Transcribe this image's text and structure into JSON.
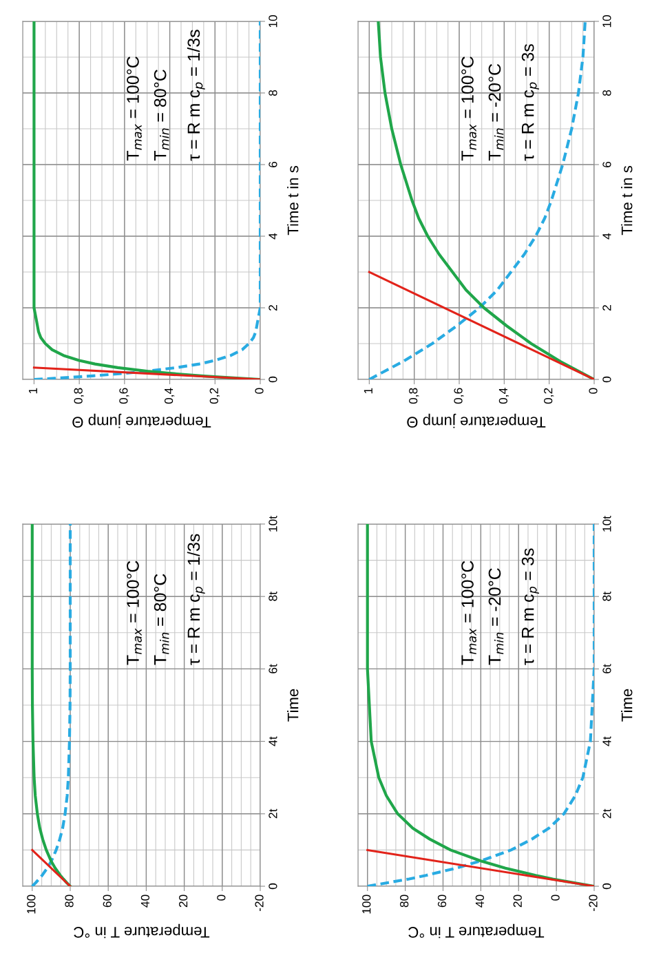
{
  "chart_data": [
    {
      "type": "line",
      "ylabel": "Time t in s",
      "xlabel": "Temperature jump Θ",
      "ylim": [
        0,
        10
      ],
      "yticks": [
        0,
        2,
        4,
        6,
        8,
        10
      ],
      "xlim": [
        1.05,
        0
      ],
      "xticks": [
        0,
        {
          "value": 0.2,
          "label": "0,2"
        },
        {
          "value": 0.4,
          "label": "0,4"
        },
        {
          "value": 0.6,
          "label": "0,6"
        },
        {
          "value": 0.8,
          "label": "0,8"
        },
        1
      ],
      "grid": true,
      "annotations": [
        "T$_{max}$ = 100°C",
        "T$_{min}$ = 80°C",
        "τ = R m c$_{p}$ = 1/3s"
      ],
      "series": [
        {
          "color": "#29abe2",
          "line_style": "dashed",
          "values": [
            0,
            0.03,
            0.07,
            0.1,
            0.17,
            0.23,
            0.33,
            0.43,
            0.53,
            0.67,
            0.83,
            1,
            1.17,
            1.33,
            1.67,
            2,
            3,
            4,
            6,
            8,
            10
          ],
          "x": [
            1,
            0.91,
            0.81,
            0.74,
            0.6,
            0.5,
            0.37,
            0.27,
            0.2,
            0.13,
            0.08,
            0.05,
            0.03,
            0.02,
            0.01,
            0,
            0,
            0,
            0,
            0,
            0
          ]
        },
        {
          "color": "#20a64a",
          "line_style": "solid",
          "values": [
            0,
            0.03,
            0.07,
            0.1,
            0.17,
            0.23,
            0.33,
            0.43,
            0.53,
            0.67,
            0.83,
            1,
            1.17,
            1.33,
            1.67,
            2,
            3,
            4,
            6,
            8,
            10
          ],
          "x": [
            0,
            0.09,
            0.19,
            0.26,
            0.4,
            0.5,
            0.63,
            0.73,
            0.8,
            0.87,
            0.92,
            0.95,
            0.97,
            0.98,
            0.99,
            1,
            1,
            1,
            1,
            1,
            1
          ]
        },
        {
          "color": "#e2231a",
          "line_style": "solid",
          "values": [
            0,
            0.33
          ],
          "x": [
            0,
            1
          ]
        }
      ]
    },
    {
      "type": "line",
      "ylabel": "Time t in s",
      "xlabel": "Temperature jump Θ",
      "ylim": [
        0,
        10
      ],
      "yticks": [
        0,
        2,
        4,
        6,
        8,
        10
      ],
      "xlim": [
        1.05,
        0
      ],
      "xticks": [
        0,
        {
          "value": 0.2,
          "label": "0,2"
        },
        {
          "value": 0.4,
          "label": "0,4"
        },
        {
          "value": 0.6,
          "label": "0,6"
        },
        {
          "value": 0.8,
          "label": "0,8"
        },
        1
      ],
      "grid": true,
      "annotations": [
        "T$_{max}$ = 100°C",
        "T$_{min}$ = -20°C",
        "τ = R m c$_{p}$ = 3s"
      ],
      "series": [
        {
          "color": "#29abe2",
          "line_style": "dashed",
          "values": [
            0,
            0.5,
            1,
            1.5,
            2,
            2.5,
            3,
            3.5,
            4,
            4.5,
            5,
            6,
            7,
            8,
            9,
            10
          ],
          "x": [
            1,
            0.85,
            0.72,
            0.61,
            0.51,
            0.43,
            0.37,
            0.31,
            0.26,
            0.22,
            0.19,
            0.14,
            0.1,
            0.07,
            0.05,
            0.04
          ]
        },
        {
          "color": "#20a64a",
          "line_style": "solid",
          "values": [
            0,
            0.5,
            1,
            1.5,
            2,
            2.5,
            3,
            3.5,
            4,
            4.5,
            5,
            6,
            7,
            8,
            9,
            10
          ],
          "x": [
            0,
            0.15,
            0.28,
            0.39,
            0.49,
            0.57,
            0.63,
            0.69,
            0.74,
            0.78,
            0.81,
            0.86,
            0.9,
            0.93,
            0.95,
            0.96
          ]
        },
        {
          "color": "#e2231a",
          "line_style": "solid",
          "values": [
            0,
            3
          ],
          "x": [
            0,
            1
          ]
        }
      ]
    },
    {
      "type": "line",
      "ylabel": "Time",
      "xlabel": "Temperature T in °C",
      "ylim": [
        0,
        10
      ],
      "yticks": [
        0,
        {
          "value": 2,
          "label": "2t"
        },
        {
          "value": 4,
          "label": "4t"
        },
        {
          "value": 6,
          "label": "6t"
        },
        {
          "value": 8,
          "label": "8t"
        },
        {
          "value": 10,
          "label": "10t"
        }
      ],
      "xlim": [
        105,
        -20
      ],
      "xticks": [
        -20,
        0,
        20,
        40,
        60,
        80,
        100
      ],
      "grid": true,
      "annotations": [
        "T$_{max}$ = 100°C",
        "T$_{min}$ = 80°C",
        "τ = R m c$_{p}$ = 1/3s"
      ],
      "series": [
        {
          "color": "#29abe2",
          "line_style": "dashed",
          "values": [
            0,
            0.1,
            0.2,
            0.3,
            0.5,
            0.7,
            1,
            1.3,
            1.6,
            2,
            2.5,
            3,
            4,
            5,
            6,
            8,
            10
          ],
          "x": [
            100,
            98.1,
            96.4,
            94.8,
            92.1,
            89.9,
            87.4,
            85.5,
            84,
            82.7,
            81.6,
            81,
            80.4,
            80.1,
            80,
            80,
            80
          ]
        },
        {
          "color": "#20a64a",
          "line_style": "solid",
          "values": [
            0,
            0.1,
            0.2,
            0.3,
            0.5,
            0.7,
            1,
            1.3,
            1.6,
            2,
            2.5,
            3,
            4,
            5,
            6,
            8,
            10
          ],
          "x": [
            80,
            81.9,
            83.6,
            85.2,
            87.9,
            90.1,
            92.6,
            94.5,
            96,
            97.3,
            98.4,
            99,
            99.6,
            99.9,
            100,
            100,
            100
          ]
        },
        {
          "color": "#e2231a",
          "line_style": "solid",
          "values": [
            0,
            1
          ],
          "x": [
            80,
            100
          ]
        }
      ]
    },
    {
      "type": "line",
      "ylabel": "Time",
      "xlabel": "Temperature T in °C",
      "ylim": [
        0,
        10
      ],
      "yticks": [
        0,
        {
          "value": 2,
          "label": "2t"
        },
        {
          "value": 4,
          "label": "4t"
        },
        {
          "value": 6,
          "label": "6t"
        },
        {
          "value": 8,
          "label": "8t"
        },
        {
          "value": 10,
          "label": "10t"
        }
      ],
      "xlim": [
        105,
        -20
      ],
      "xticks": [
        -20,
        0,
        20,
        40,
        60,
        80,
        100
      ],
      "grid": true,
      "annotations": [
        "T$_{max}$ = 100°C",
        "T$_{min}$ = -20°C",
        "τ = R m c$_{p}$ = 3s"
      ],
      "series": [
        {
          "color": "#29abe2",
          "line_style": "dashed",
          "values": [
            0,
            0.1,
            0.2,
            0.3,
            0.5,
            0.7,
            1,
            1.3,
            1.6,
            2,
            2.5,
            3,
            4,
            5,
            6,
            8,
            10
          ],
          "x": [
            100,
            89,
            78,
            69,
            53,
            40,
            24,
            13,
            4,
            -4,
            -10,
            -14,
            -18,
            -19,
            -20,
            -20,
            -20
          ]
        },
        {
          "color": "#20a64a",
          "line_style": "solid",
          "values": [
            0,
            0.1,
            0.2,
            0.3,
            0.5,
            0.7,
            1,
            1.3,
            1.6,
            2,
            2.5,
            3,
            4,
            5,
            6,
            8,
            10
          ],
          "x": [
            -20,
            -9,
            2,
            11,
            27,
            40,
            56,
            67,
            76,
            84,
            90,
            94,
            98,
            99,
            100,
            100,
            100
          ]
        },
        {
          "color": "#e2231a",
          "line_style": "solid",
          "values": [
            0,
            1
          ],
          "x": [
            -20,
            100
          ]
        }
      ]
    }
  ]
}
